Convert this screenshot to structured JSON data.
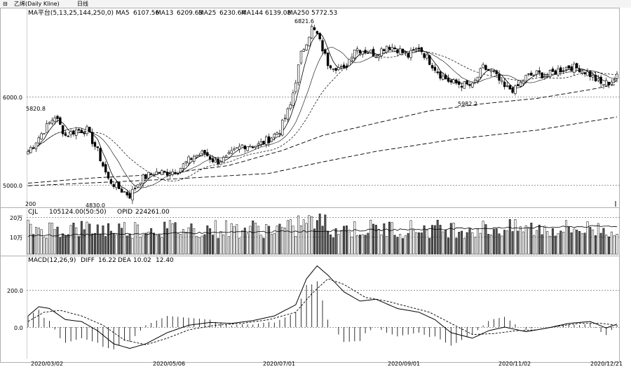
{
  "toolbar": {
    "title_label": "乙烯(Daily Kline)",
    "period_label": "日线"
  },
  "chart_data": [
    {
      "type": "candlestick",
      "panel": "price",
      "header": {
        "ma_spec": "MA平台(5,13,25,144,250,0)",
        "values": [
          {
            "label": "MA5",
            "value": "6107.56"
          },
          {
            "label": "MA13",
            "value": "6209.63"
          },
          {
            "label": "MA25",
            "value": "6230.64"
          },
          {
            "label": "MA144",
            "value": "6139.08"
          },
          {
            "label": "MA250",
            "value": "5772.53"
          }
        ]
      },
      "y_ticks": [
        "6000.0",
        "5000.0"
      ],
      "ylim": [
        4830,
        6780
      ],
      "x_ticks": [
        "2020/03/02",
        "2020/05/06",
        "2020/07/01",
        "2020/09/01",
        "2020/11/02",
        "2020/12/21"
      ],
      "annotations": [
        "6821.6",
        "5820.8",
        "4830.0",
        "5982.2",
        "200"
      ],
      "anchors": [
        {
          "x": 0,
          "close": 5380
        },
        {
          "x": 6,
          "close": 5620
        },
        {
          "x": 10,
          "close": 5780
        },
        {
          "x": 14,
          "close": 5560
        },
        {
          "x": 18,
          "close": 5620
        },
        {
          "x": 22,
          "close": 5620
        },
        {
          "x": 26,
          "close": 5380
        },
        {
          "x": 30,
          "close": 5060
        },
        {
          "x": 34,
          "close": 4960
        },
        {
          "x": 38,
          "close": 4880
        },
        {
          "x": 42,
          "close": 5060
        },
        {
          "x": 47,
          "close": 5140
        },
        {
          "x": 52,
          "close": 5140
        },
        {
          "x": 56,
          "close": 5170
        },
        {
          "x": 62,
          "close": 5330
        },
        {
          "x": 66,
          "close": 5360
        },
        {
          "x": 70,
          "close": 5260
        },
        {
          "x": 74,
          "close": 5300
        },
        {
          "x": 80,
          "close": 5450
        },
        {
          "x": 86,
          "close": 5450
        },
        {
          "x": 90,
          "close": 5520
        },
        {
          "x": 94,
          "close": 5620
        },
        {
          "x": 98,
          "close": 5900
        },
        {
          "x": 102,
          "close": 6480
        },
        {
          "x": 106,
          "close": 6780
        },
        {
          "x": 108,
          "close": 6700
        },
        {
          "x": 112,
          "close": 6380
        },
        {
          "x": 118,
          "close": 6300
        },
        {
          "x": 122,
          "close": 6550
        },
        {
          "x": 126,
          "close": 6520
        },
        {
          "x": 130,
          "close": 6480
        },
        {
          "x": 134,
          "close": 6580
        },
        {
          "x": 138,
          "close": 6540
        },
        {
          "x": 142,
          "close": 6460
        },
        {
          "x": 146,
          "close": 6560
        },
        {
          "x": 150,
          "close": 6400
        },
        {
          "x": 154,
          "close": 6250
        },
        {
          "x": 158,
          "close": 6160
        },
        {
          "x": 162,
          "close": 6140
        },
        {
          "x": 166,
          "close": 6120
        },
        {
          "x": 170,
          "close": 6330
        },
        {
          "x": 174,
          "close": 6260
        },
        {
          "x": 178,
          "close": 6100
        },
        {
          "x": 182,
          "close": 6080
        },
        {
          "x": 186,
          "close": 6220
        },
        {
          "x": 190,
          "close": 6260
        },
        {
          "x": 194,
          "close": 6240
        },
        {
          "x": 198,
          "close": 6300
        },
        {
          "x": 202,
          "close": 6340
        },
        {
          "x": 206,
          "close": 6320
        },
        {
          "x": 210,
          "close": 6250
        },
        {
          "x": 214,
          "close": 6140
        },
        {
          "x": 217,
          "close": 6160
        },
        {
          "x": 220,
          "close": 6220
        }
      ],
      "ma250_line": [
        {
          "x": 0,
          "value": 4990
        },
        {
          "x": 50,
          "value": 5060
        },
        {
          "x": 90,
          "value": 5130
        },
        {
          "x": 110,
          "value": 5260
        },
        {
          "x": 130,
          "value": 5380
        },
        {
          "x": 160,
          "value": 5520
        },
        {
          "x": 190,
          "value": 5620
        },
        {
          "x": 220,
          "value": 5770
        }
      ],
      "ma144_line": [
        {
          "x": 0,
          "value": 5020
        },
        {
          "x": 25,
          "value": 5080
        },
        {
          "x": 50,
          "value": 5120
        },
        {
          "x": 75,
          "value": 5220
        },
        {
          "x": 95,
          "value": 5390
        },
        {
          "x": 110,
          "value": 5560
        },
        {
          "x": 130,
          "value": 5700
        },
        {
          "x": 150,
          "value": 5840
        },
        {
          "x": 170,
          "value": 5920
        },
        {
          "x": 190,
          "value": 5980
        },
        {
          "x": 210,
          "value": 6080
        },
        {
          "x": 220,
          "value": 6140
        }
      ]
    },
    {
      "type": "bar",
      "panel": "volume",
      "header": {
        "name": "CJL",
        "values": [
          {
            "label": "",
            "value": "105124.00(50:50)"
          },
          {
            "label": "OPID",
            "value": "224261.00"
          }
        ]
      },
      "y_ticks": [
        "20万",
        "10万"
      ],
      "ylim": [
        0,
        250000
      ]
    },
    {
      "type": "line",
      "panel": "macd",
      "header": {
        "name": "MACD(12,26,9)",
        "values": [
          {
            "label": "DIFF",
            "value": "16.22"
          },
          {
            "label": "DEA",
            "value": "10.02"
          },
          {
            "label": "",
            "value": "12.40"
          }
        ]
      },
      "y_ticks": [
        "200.0",
        "0.0"
      ],
      "ylim": [
        -140,
        360
      ],
      "diff_anchors": [
        {
          "x": 0,
          "value": 60
        },
        {
          "x": 4,
          "value": 110
        },
        {
          "x": 8,
          "value": 100
        },
        {
          "x": 14,
          "value": 40
        },
        {
          "x": 20,
          "value": 30
        },
        {
          "x": 26,
          "value": -20
        },
        {
          "x": 32,
          "value": -90
        },
        {
          "x": 38,
          "value": -115
        },
        {
          "x": 44,
          "value": -90
        },
        {
          "x": 52,
          "value": -30
        },
        {
          "x": 60,
          "value": 10
        },
        {
          "x": 68,
          "value": 25
        },
        {
          "x": 76,
          "value": 20
        },
        {
          "x": 84,
          "value": 35
        },
        {
          "x": 92,
          "value": 60
        },
        {
          "x": 100,
          "value": 120
        },
        {
          "x": 104,
          "value": 260
        },
        {
          "x": 108,
          "value": 330
        },
        {
          "x": 112,
          "value": 280
        },
        {
          "x": 118,
          "value": 190
        },
        {
          "x": 124,
          "value": 140
        },
        {
          "x": 130,
          "value": 150
        },
        {
          "x": 138,
          "value": 100
        },
        {
          "x": 146,
          "value": 80
        },
        {
          "x": 152,
          "value": 40
        },
        {
          "x": 158,
          "value": -30
        },
        {
          "x": 166,
          "value": -60
        },
        {
          "x": 172,
          "value": -20
        },
        {
          "x": 178,
          "value": 0
        },
        {
          "x": 186,
          "value": -25
        },
        {
          "x": 194,
          "value": -5
        },
        {
          "x": 202,
          "value": 20
        },
        {
          "x": 210,
          "value": 30
        },
        {
          "x": 216,
          "value": -5
        },
        {
          "x": 220,
          "value": 16
        }
      ],
      "dea_anchors": [
        {
          "x": 0,
          "value": 30
        },
        {
          "x": 6,
          "value": 80
        },
        {
          "x": 12,
          "value": 90
        },
        {
          "x": 20,
          "value": 60
        },
        {
          "x": 28,
          "value": 10
        },
        {
          "x": 36,
          "value": -70
        },
        {
          "x": 44,
          "value": -95
        },
        {
          "x": 52,
          "value": -60
        },
        {
          "x": 60,
          "value": -15
        },
        {
          "x": 70,
          "value": 10
        },
        {
          "x": 80,
          "value": 20
        },
        {
          "x": 90,
          "value": 40
        },
        {
          "x": 100,
          "value": 80
        },
        {
          "x": 106,
          "value": 180
        },
        {
          "x": 112,
          "value": 260
        },
        {
          "x": 118,
          "value": 230
        },
        {
          "x": 126,
          "value": 160
        },
        {
          "x": 134,
          "value": 140
        },
        {
          "x": 142,
          "value": 110
        },
        {
          "x": 150,
          "value": 80
        },
        {
          "x": 158,
          "value": 20
        },
        {
          "x": 166,
          "value": -40
        },
        {
          "x": 174,
          "value": -35
        },
        {
          "x": 182,
          "value": -20
        },
        {
          "x": 190,
          "value": -15
        },
        {
          "x": 198,
          "value": 5
        },
        {
          "x": 206,
          "value": 20
        },
        {
          "x": 214,
          "value": 20
        },
        {
          "x": 220,
          "value": 10
        }
      ]
    }
  ]
}
